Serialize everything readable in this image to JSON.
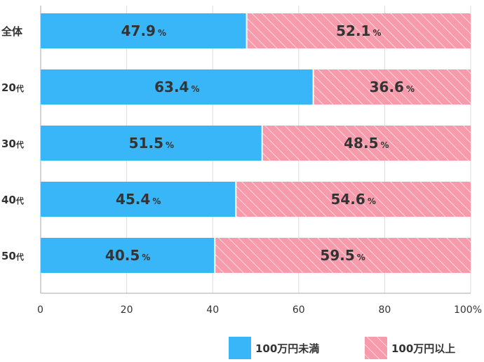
{
  "chart_data": {
    "type": "bar",
    "orientation": "horizontal",
    "stacked": true,
    "percent": true,
    "categories": [
      {
        "main": "全体",
        "suffix": ""
      },
      {
        "main": "20",
        "suffix": "代"
      },
      {
        "main": "30",
        "suffix": "代"
      },
      {
        "main": "40",
        "suffix": "代"
      },
      {
        "main": "50",
        "suffix": "代"
      }
    ],
    "series": [
      {
        "name": "100万円未満",
        "values": [
          47.9,
          63.4,
          51.5,
          45.4,
          40.5
        ],
        "color": "#38b6f8",
        "pattern": "solid"
      },
      {
        "name": "100万円以上",
        "values": [
          52.1,
          36.6,
          48.5,
          54.6,
          59.5
        ],
        "color": "#f79aab",
        "pattern": "hatched"
      }
    ],
    "value_labels": [
      [
        "47.9",
        "63.4",
        "51.5",
        "45.4",
        "40.5"
      ],
      [
        "52.1",
        "36.6",
        "48.5",
        "54.6",
        "59.5"
      ]
    ],
    "value_unit": "%",
    "xlim": [
      0,
      100
    ],
    "x_ticks": [
      0,
      20,
      40,
      60,
      80,
      100
    ],
    "x_tick_labels": [
      "0",
      "20",
      "40",
      "60",
      "80",
      "100%"
    ],
    "grid": true,
    "legend_position": "bottom-right"
  }
}
